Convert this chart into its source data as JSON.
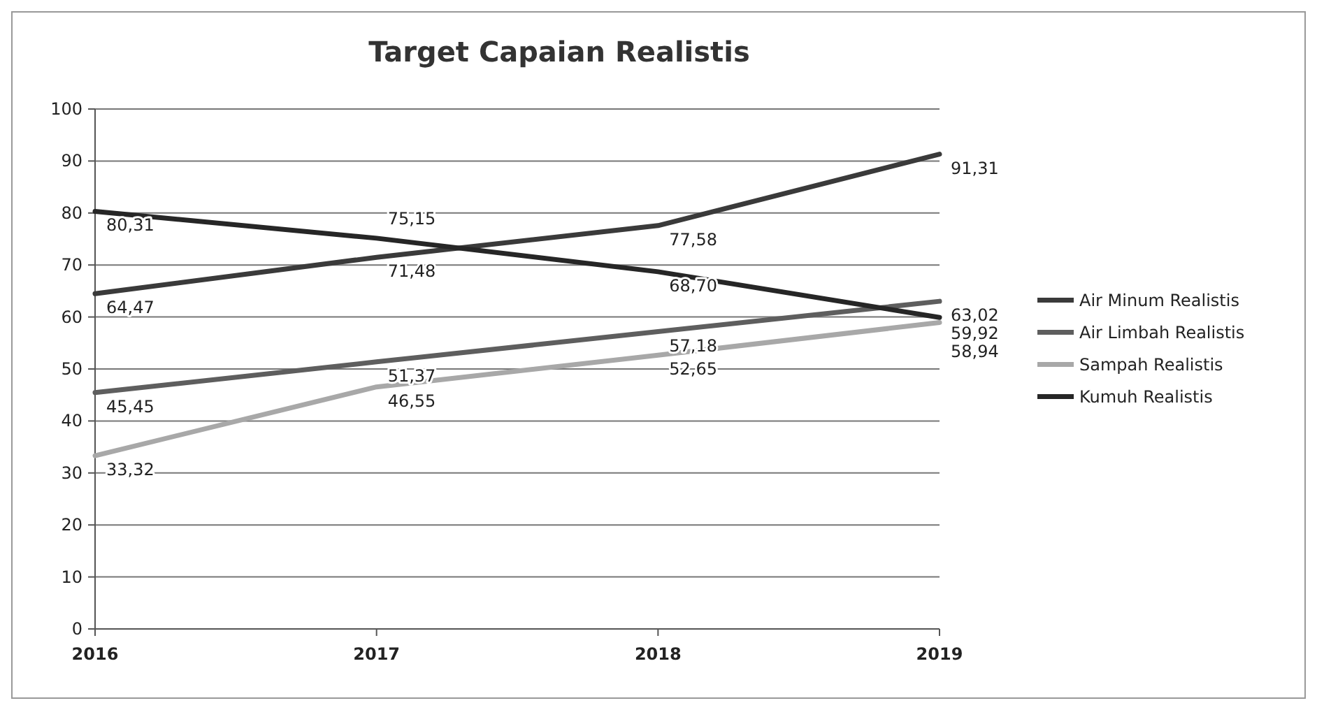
{
  "chart_data": {
    "type": "line",
    "title": "Target Capaian Realistis",
    "x": [
      2016,
      2017,
      2018,
      2019
    ],
    "xlim": [
      2016,
      2019
    ],
    "xticks": [
      2016,
      2017,
      2018,
      2019
    ],
    "ylim": [
      0,
      100
    ],
    "yticks": [
      0,
      10,
      20,
      30,
      40,
      50,
      60,
      70,
      80,
      90,
      100
    ],
    "grid": "y",
    "legend": "right",
    "marker": "none",
    "series": [
      {
        "name": "Air Minum Realistis",
        "color": "#3a3a3a",
        "values": [
          64.47,
          71.48,
          77.58,
          91.31
        ],
        "value_labels": [
          "64,47",
          "71,48",
          "77,58",
          "91,31"
        ]
      },
      {
        "name": "Air Limbah Realistis",
        "color": "#5e5e5e",
        "values": [
          45.45,
          51.37,
          57.18,
          63.02
        ],
        "value_labels": [
          "45,45",
          "51,37",
          "57,18",
          "63,02"
        ]
      },
      {
        "name": "Sampah Realistis",
        "color": "#a8a8a8",
        "values": [
          33.32,
          46.55,
          52.65,
          58.94
        ],
        "value_labels": [
          "33,32",
          "46,55",
          "52,65",
          "58,94"
        ]
      },
      {
        "name": "Kumuh Realistis",
        "color": "#262626",
        "values": [
          80.31,
          75.15,
          68.7,
          59.92
        ],
        "value_labels": [
          "80,31",
          "75,15",
          "68,70",
          "59,92"
        ]
      }
    ]
  }
}
